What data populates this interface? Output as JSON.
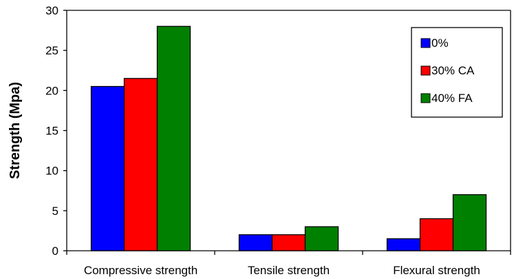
{
  "chart_data": {
    "type": "bar",
    "title": "",
    "xlabel": "",
    "ylabel": "Strength (Mpa)",
    "ylim": [
      0,
      30
    ],
    "yticks": [
      0,
      5,
      10,
      15,
      20,
      25,
      30
    ],
    "categories": [
      "Compressive strength",
      "Tensile strength",
      "Flexural strength"
    ],
    "series": [
      {
        "name": "0%",
        "color": "#0000ff",
        "values": [
          20.5,
          2.0,
          1.5
        ]
      },
      {
        "name": "30% CA",
        "color": "#ff0000",
        "values": [
          21.5,
          2.0,
          4.0
        ]
      },
      {
        "name": "40% FA",
        "color": "#008000",
        "values": [
          28.0,
          3.0,
          7.0
        ]
      }
    ],
    "legend_position": "top-right",
    "grid": false
  }
}
